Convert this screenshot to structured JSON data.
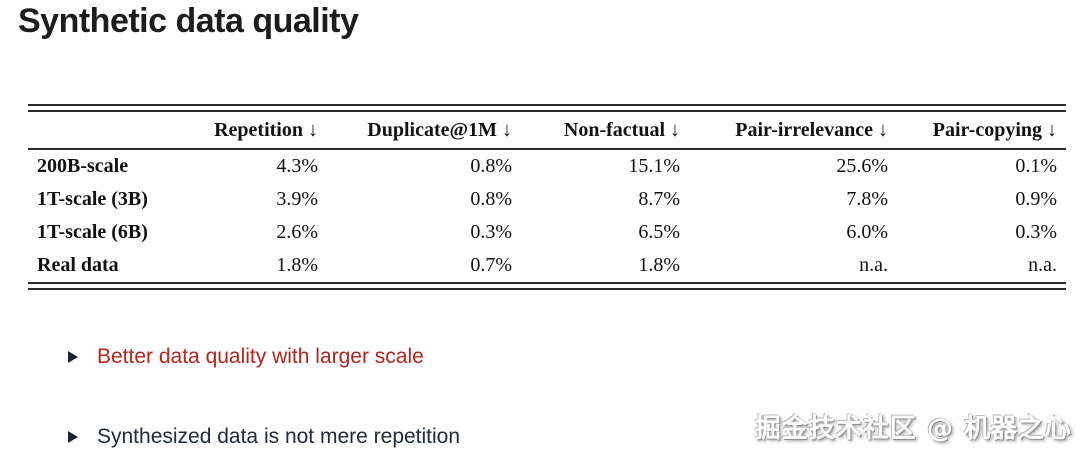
{
  "title": "Synthetic data quality",
  "table": {
    "columns": [
      "",
      "Repetition ↓",
      "Duplicate@1M ↓",
      "Non-factual ↓",
      "Pair-irrelevance ↓",
      "Pair-copying ↓"
    ],
    "rows": [
      {
        "label": "200B-scale",
        "values": [
          "4.3%",
          "0.8%",
          "15.1%",
          "25.6%",
          "0.1%"
        ]
      },
      {
        "label": "1T-scale (3B)",
        "values": [
          "3.9%",
          "0.8%",
          "8.7%",
          "7.8%",
          "0.9%"
        ]
      },
      {
        "label": "1T-scale (6B)",
        "values": [
          "2.6%",
          "0.3%",
          "6.5%",
          "6.0%",
          "0.3%"
        ]
      },
      {
        "label": "Real data",
        "values": [
          "1.8%",
          "0.7%",
          "1.8%",
          "n.a.",
          "n.a."
        ]
      }
    ]
  },
  "bullets": [
    {
      "text": "Better data quality with larger scale",
      "color": "#b3261c"
    },
    {
      "text": "Synthesized data is not mere repetition",
      "color": "#222b3a"
    }
  ],
  "watermark": "掘金技术社区 @ 机器之心",
  "colors": {
    "title_text": "#1d1d1d",
    "table_text": "#111111",
    "table_rule": "#2b2b2b",
    "accent_red": "#b3261c"
  }
}
